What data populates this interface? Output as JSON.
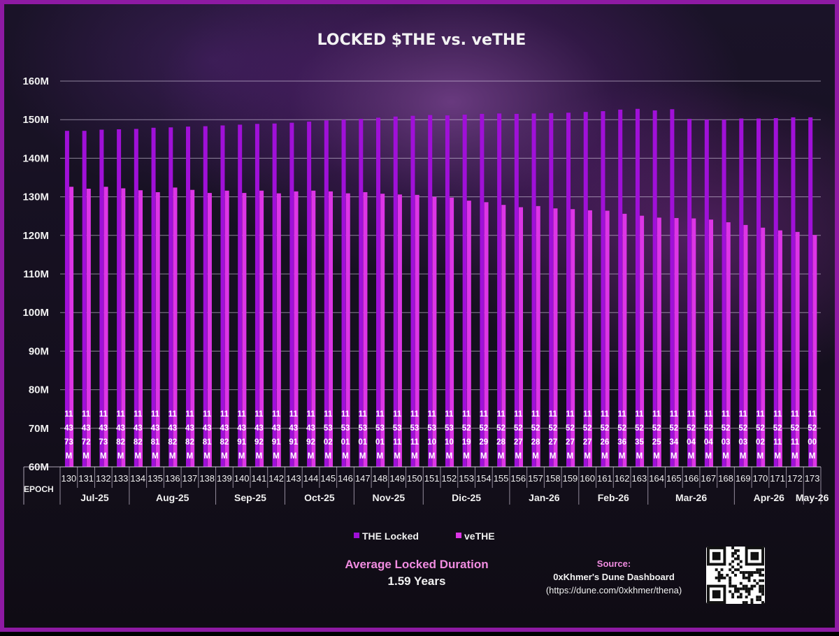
{
  "chart_data": {
    "type": "bar",
    "title": "LOCKED $THE vs. veTHE",
    "xlabel": "EPOCH",
    "ylabel": "",
    "ylim": [
      60,
      160
    ],
    "ytick_labels": [
      "60M",
      "70M",
      "80M",
      "90M",
      "100M",
      "110M",
      "120M",
      "130M",
      "140M",
      "150M",
      "160M"
    ],
    "grid": true,
    "legend_position": "bottom-center",
    "categories": [
      "130",
      "131",
      "132",
      "133",
      "134",
      "135",
      "136",
      "137",
      "138",
      "139",
      "140",
      "141",
      "142",
      "143",
      "144",
      "145",
      "146",
      "147",
      "148",
      "149",
      "150",
      "151",
      "152",
      "153",
      "154",
      "155",
      "156",
      "157",
      "158",
      "159",
      "160",
      "161",
      "162",
      "163",
      "164",
      "165",
      "166",
      "167",
      "168",
      "169",
      "170",
      "171",
      "172",
      "173"
    ],
    "series": [
      {
        "name": "THE Locked",
        "color": "#a010d8",
        "values": [
          147.1,
          147.1,
          147.4,
          147.5,
          147.6,
          147.9,
          148.0,
          148.2,
          148.3,
          148.5,
          148.7,
          148.9,
          149.0,
          149.2,
          149.5,
          149.8,
          150.0,
          150.2,
          150.5,
          150.8,
          151.0,
          151.2,
          151.1,
          151.3,
          151.5,
          151.6,
          151.5,
          151.6,
          151.7,
          151.8,
          152.0,
          152.2,
          152.6,
          152.8,
          152.4,
          152.7,
          150.2,
          150.0,
          150.0,
          150.3,
          150.3,
          150.4,
          150.6,
          150.6
        ],
        "labels": [
          "114373M",
          "114372M",
          "114373M",
          "114382M",
          "114382M",
          "114381M",
          "114382M",
          "114382M",
          "114381M",
          "114382M",
          "114391M",
          "114392M",
          "114391M",
          "114391M",
          "114392M",
          "115302M",
          "115301M",
          "115301M",
          "115301M",
          "115311M",
          "115311M",
          "115310M",
          "115310M",
          "115219M",
          "115229M",
          "115228M",
          "115227M",
          "115228M",
          "115227M",
          "115227M",
          "115227M",
          "115226M",
          "115236M",
          "115235M",
          "115225M",
          "115234M",
          "115204M",
          "115204M",
          "115203M",
          "115203M",
          "115202M",
          "115211M",
          "115211M",
          "115200M"
        ]
      },
      {
        "name": "veTHE",
        "color": "#dd35e6",
        "values": [
          132.6,
          132.1,
          132.6,
          132.2,
          131.7,
          131.2,
          132.4,
          131.8,
          131.0,
          131.6,
          131.0,
          131.6,
          130.9,
          131.4,
          131.6,
          131.4,
          130.9,
          131.2,
          130.8,
          130.6,
          130.5,
          130.0,
          129.8,
          129.0,
          128.6,
          127.9,
          127.3,
          127.6,
          127.0,
          126.8,
          126.5,
          126.4,
          125.6,
          125.1,
          124.6,
          124.5,
          124.4,
          124.1,
          123.4,
          122.7,
          122.0,
          121.3,
          120.9,
          120.1
        ]
      }
    ],
    "month_groups": [
      {
        "label": "Jul-25",
        "count": 4
      },
      {
        "label": "Aug-25",
        "count": 5
      },
      {
        "label": "Sep-25",
        "count": 4
      },
      {
        "label": "Oct-25",
        "count": 4
      },
      {
        "label": "Nov-25",
        "count": 4
      },
      {
        "label": "Dic-25",
        "count": 5
      },
      {
        "label": "Jan-26",
        "count": 4
      },
      {
        "label": "Feb-26",
        "count": 4
      },
      {
        "label": "Mar-26",
        "count": 5
      },
      {
        "label": "Apr-26",
        "count": 4
      },
      {
        "label": "May-26",
        "count": 1
      }
    ]
  },
  "stats": {
    "avg_title": "Average Locked Duration",
    "avg_value": "1.59 Years"
  },
  "source": {
    "label": "Source:",
    "name": "0xKhmer's Dune Dashboard",
    "url": "(https://dune.com/0xkhmer/thena)"
  }
}
